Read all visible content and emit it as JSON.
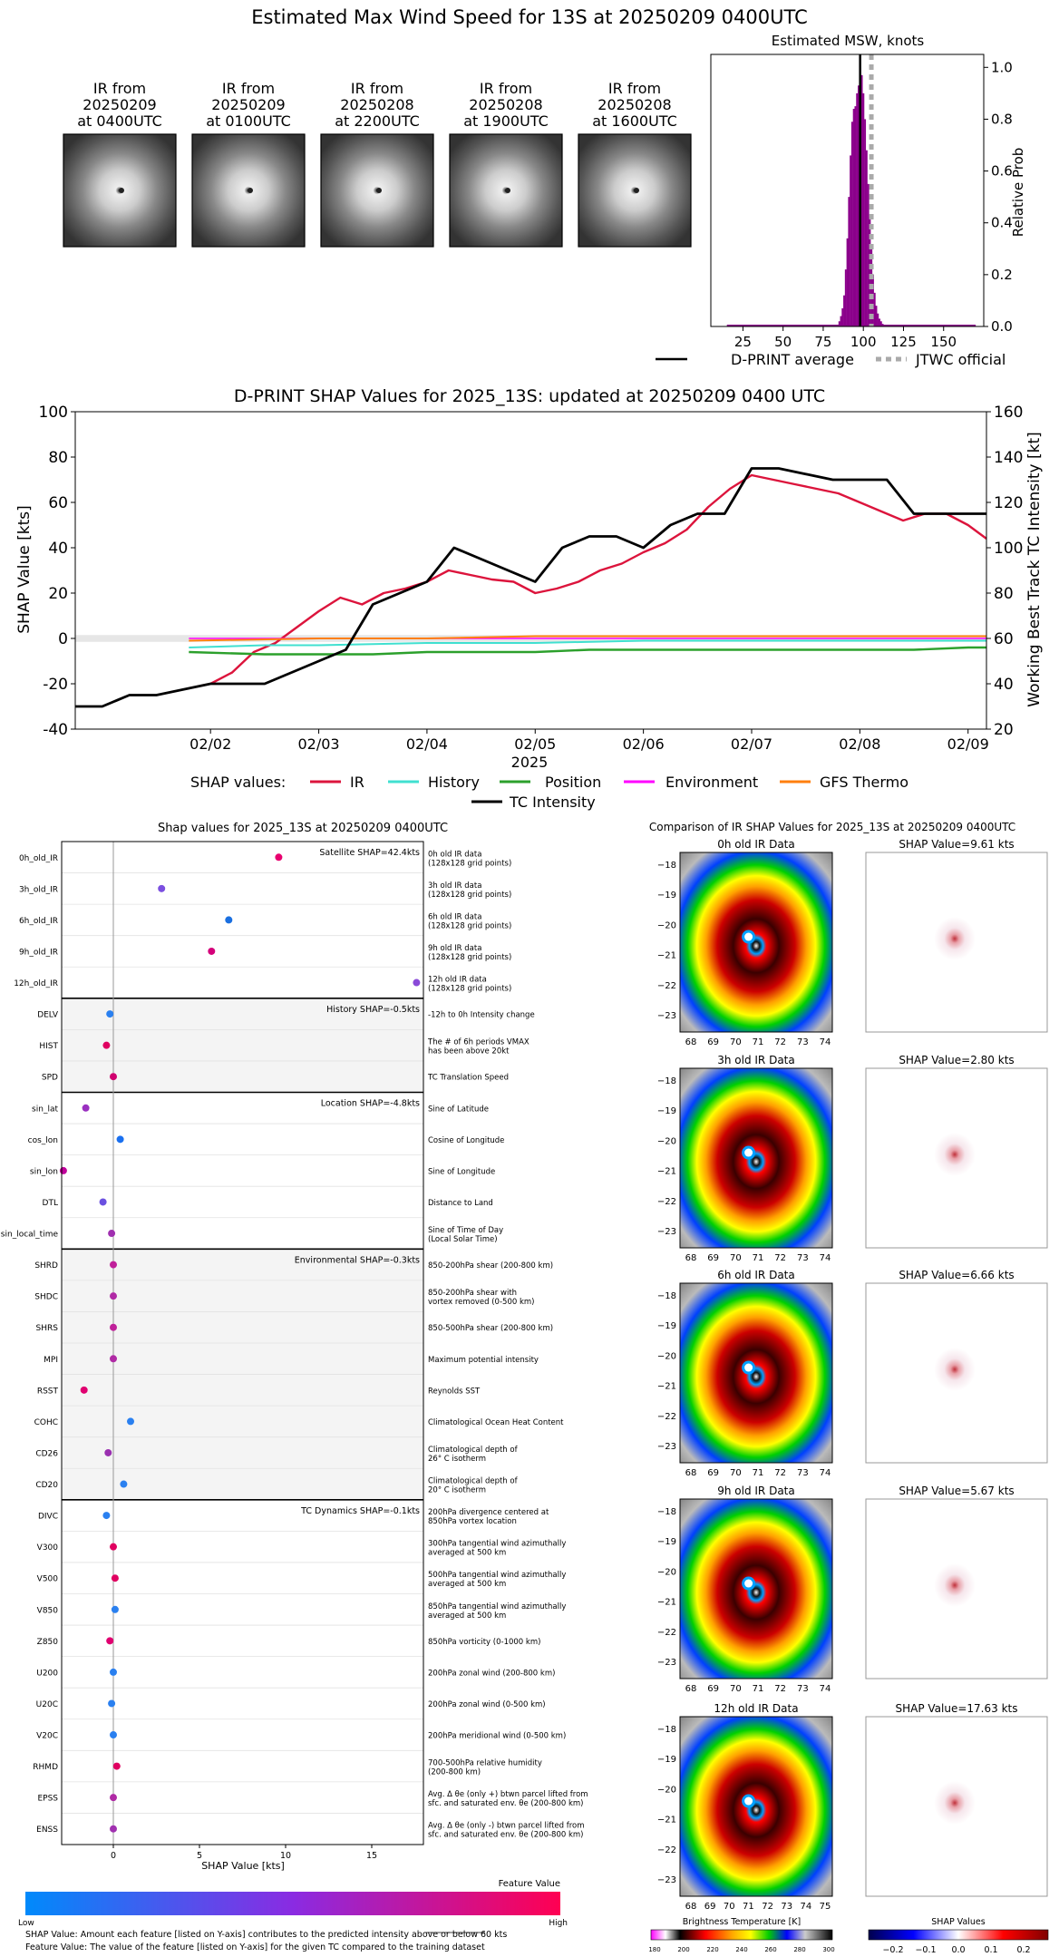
{
  "page": {
    "title": "Estimated Max Wind Speed for 13S at 20250209 0400UTC"
  },
  "ir_thumbnails": [
    {
      "line1": "IR from",
      "line2": "20250209",
      "line3": "at 0400UTC"
    },
    {
      "line1": "IR from",
      "line2": "20250209",
      "line3": "at 0100UTC"
    },
    {
      "line1": "IR from",
      "line2": "20250208",
      "line3": "at 2200UTC"
    },
    {
      "line1": "IR from",
      "line2": "20250208",
      "line3": "at 1900UTC"
    },
    {
      "line1": "IR from",
      "line2": "20250208",
      "line3": "at 1600UTC"
    }
  ],
  "colors": {
    "msw_bars": "#8b008b",
    "jtwc": "#aaaaaa",
    "ir": "#dc143c",
    "history": "#40e0d0",
    "position": "#2ca02c",
    "environment": "#ff00ff",
    "gfs_thermo": "#ff7f0e",
    "tc_intensity": "#000000"
  },
  "chart_data": [
    {
      "type": "bar",
      "title": "Estimated MSW, knots",
      "ylabel": "Relative Prob",
      "xlim": [
        5,
        175
      ],
      "ylim": [
        0,
        1.05
      ],
      "xticks": [
        25,
        50,
        75,
        100,
        125,
        150
      ],
      "yticks": [
        0.0,
        0.2,
        0.4,
        0.6,
        0.8,
        1.0
      ],
      "x": [
        85,
        86,
        87,
        88,
        89,
        90,
        91,
        92,
        93,
        94,
        95,
        96,
        97,
        98,
        99,
        100,
        101,
        102,
        103,
        104,
        105,
        106,
        107,
        108,
        109,
        110,
        111,
        112
      ],
      "values": [
        0.02,
        0.04,
        0.07,
        0.12,
        0.22,
        0.34,
        0.5,
        0.66,
        0.79,
        0.84,
        0.85,
        0.9,
        0.93,
        1.0,
        0.97,
        0.9,
        0.8,
        0.68,
        0.55,
        0.42,
        0.3,
        0.2,
        0.13,
        0.08,
        0.05,
        0.03,
        0.02,
        0.01
      ],
      "dprint_average": 98,
      "jtwc_official": 105,
      "legend": [
        "D-PRINT average",
        "JTWC official"
      ]
    },
    {
      "type": "line",
      "title": "D-PRINT SHAP Values for 2025_13S: updated at 20250209 0400 UTC",
      "xlabel": "2025",
      "ylabel": "SHAP Value [kts]",
      "ylabel_right": "Working Best Track TC Intensity [kt]",
      "xticks": [
        "02/02",
        "02/03",
        "02/04",
        "02/05",
        "02/06",
        "02/07",
        "02/08",
        "02/09"
      ],
      "ylim": [
        -40,
        100
      ],
      "ylim_right": [
        20,
        160
      ],
      "yticks": [
        -40,
        -20,
        0,
        20,
        40,
        60,
        80,
        100
      ],
      "yticks_right": [
        20,
        40,
        60,
        80,
        100,
        120,
        140,
        160
      ],
      "legend_prefix": "SHAP values:",
      "series": [
        {
          "name": "IR",
          "axis": "left",
          "x": [
            1.8,
            2.0,
            2.2,
            2.4,
            2.6,
            2.8,
            3.0,
            3.2,
            3.4,
            3.6,
            3.8,
            4.0,
            4.2,
            4.4,
            4.6,
            4.8,
            5.0,
            5.2,
            5.4,
            5.6,
            5.8,
            6.0,
            6.2,
            6.4,
            6.6,
            6.8,
            7.0,
            7.2,
            7.4,
            7.6,
            7.8,
            8.0,
            8.2,
            8.4,
            8.6,
            8.8,
            9.0,
            9.17
          ],
          "y": [
            -22,
            -20,
            -15,
            -6,
            -2,
            5,
            12,
            18,
            15,
            20,
            22,
            25,
            30,
            28,
            26,
            25,
            20,
            22,
            25,
            30,
            33,
            38,
            42,
            48,
            58,
            66,
            72,
            70,
            68,
            66,
            64,
            60,
            56,
            52,
            55,
            55,
            50,
            44
          ]
        },
        {
          "name": "History",
          "axis": "left",
          "x": [
            1.8,
            2.5,
            3.0,
            4.0,
            5.0,
            6.0,
            7.0,
            8.0,
            9.17
          ],
          "y": [
            -4,
            -3,
            -3,
            -2,
            -2,
            -1,
            -1,
            -1,
            -1
          ]
        },
        {
          "name": "Position",
          "axis": "left",
          "x": [
            1.8,
            2.5,
            3.0,
            3.5,
            4.0,
            4.5,
            5.0,
            5.5,
            6.0,
            6.5,
            7.0,
            7.5,
            8.0,
            8.5,
            9.0,
            9.17
          ],
          "y": [
            -6,
            -7,
            -7,
            -7,
            -6,
            -6,
            -6,
            -5,
            -5,
            -5,
            -5,
            -5,
            -5,
            -5,
            -4,
            -4
          ]
        },
        {
          "name": "Environment",
          "axis": "left",
          "x": [
            1.8,
            3.0,
            4.0,
            5.0,
            6.0,
            7.0,
            8.0,
            9.17
          ],
          "y": [
            0,
            0,
            0,
            0,
            0,
            0,
            0,
            0
          ]
        },
        {
          "name": "GFS Thermo",
          "axis": "left",
          "x": [
            1.8,
            3.0,
            4.0,
            5.0,
            6.0,
            7.0,
            8.0,
            9.17
          ],
          "y": [
            -1,
            0,
            0,
            1,
            1,
            1,
            1,
            1
          ]
        },
        {
          "name": "TC Intensity",
          "axis": "right",
          "x": [
            0.75,
            1.0,
            1.25,
            1.5,
            2.0,
            2.5,
            3.0,
            3.25,
            3.5,
            4.0,
            4.25,
            4.75,
            5.0,
            5.25,
            5.5,
            5.75,
            6.0,
            6.25,
            6.5,
            6.75,
            7.0,
            7.25,
            7.75,
            8.25,
            8.5,
            9.17
          ],
          "y": [
            30,
            30,
            35,
            35,
            40,
            40,
            50,
            55,
            75,
            85,
            100,
            90,
            85,
            100,
            105,
            105,
            100,
            110,
            115,
            115,
            135,
            135,
            130,
            130,
            115,
            115
          ]
        }
      ]
    }
  ],
  "shap_panel": {
    "title": "Shap values for 2025_13S at 20250209 0400UTC",
    "xlabel": "SHAP Value [kts]",
    "xticks": [
      "0",
      "5",
      "10",
      "15"
    ],
    "xlim": [
      -3,
      18
    ],
    "groups": [
      {
        "label": "Satellite SHAP=42.4kts",
        "rows": [
          {
            "feature": "0h_old_IR",
            "desc1": "0h old IR data",
            "desc2": "(128x128 grid points)",
            "shap": 9.6,
            "color": "#e8006f"
          },
          {
            "feature": "3h_old_IR",
            "desc1": "3h old IR data",
            "desc2": "(128x128 grid points)",
            "shap": 2.8,
            "color": "#7b4fe0"
          },
          {
            "feature": "6h_old_IR",
            "desc1": "6h old IR data",
            "desc2": "(128x128 grid points)",
            "shap": 6.7,
            "color": "#1a6fe0"
          },
          {
            "feature": "9h_old_IR",
            "desc1": "9h old IR data",
            "desc2": "(128x128 grid points)",
            "shap": 5.7,
            "color": "#d4007a"
          },
          {
            "feature": "12h_old_IR",
            "desc1": "12h old IR data",
            "desc2": "(128x128 grid points)",
            "shap": 17.6,
            "color": "#8a4ad8"
          }
        ]
      },
      {
        "label": "History SHAP=-0.5kts",
        "rows": [
          {
            "feature": "DELV",
            "desc1": "-12h to 0h Intensity change",
            "desc2": "",
            "shap": -0.2,
            "color": "#2a80f0"
          },
          {
            "feature": "HIST",
            "desc1": "The # of 6h periods VMAX",
            "desc2": "has been above 20kt",
            "shap": -0.4,
            "color": "#e00060"
          },
          {
            "feature": "SPD",
            "desc1": "TC Translation Speed",
            "desc2": "",
            "shap": 0.0,
            "color": "#d0006f"
          }
        ]
      },
      {
        "label": "Location SHAP=-4.8kts",
        "rows": [
          {
            "feature": "sin_lat",
            "desc1": "Sine of Latitude",
            "desc2": "",
            "shap": -1.6,
            "color": "#9a30c0"
          },
          {
            "feature": "cos_lon",
            "desc1": "Cosine of Longitude",
            "desc2": "",
            "shap": 0.4,
            "color": "#1a70f0"
          },
          {
            "feature": "sin_lon",
            "desc1": "Sine of Longitude",
            "desc2": "",
            "shap": -2.9,
            "color": "#c0009a"
          },
          {
            "feature": "DTL",
            "desc1": "Distance to Land",
            "desc2": "",
            "shap": -0.6,
            "color": "#6a50e0"
          },
          {
            "feature": "sin_local_time",
            "desc1": "Sine of Time of Day",
            "desc2": "(Local Solar Time)",
            "shap": -0.1,
            "color": "#a030b0"
          }
        ]
      },
      {
        "label": "Environmental SHAP=-0.3kts",
        "rows": [
          {
            "feature": "SHRD",
            "desc1": "850-200hPa shear (200-800 km)",
            "desc2": "",
            "shap": 0.0,
            "color": "#c0209a"
          },
          {
            "feature": "SHDC",
            "desc1": "850-200hPa shear with",
            "desc2": "vortex removed (0-500 km)",
            "shap": 0.0,
            "color": "#b02aa5"
          },
          {
            "feature": "SHRS",
            "desc1": "850-500hPa shear (200-800 km)",
            "desc2": "",
            "shap": 0.0,
            "color": "#c0209a"
          },
          {
            "feature": "MPI",
            "desc1": "Maximum potential intensity",
            "desc2": "",
            "shap": 0.0,
            "color": "#b02aa5"
          },
          {
            "feature": "RSST",
            "desc1": "Reynolds SST",
            "desc2": "",
            "shap": -1.7,
            "color": "#e00070"
          },
          {
            "feature": "COHC",
            "desc1": "Climatological Ocean Heat Content",
            "desc2": "",
            "shap": 1.0,
            "color": "#2a80f0"
          },
          {
            "feature": "CD26",
            "desc1": "Climatological depth of",
            "desc2": "26° C isotherm",
            "shap": -0.3,
            "color": "#9a30b0"
          },
          {
            "feature": "CD20",
            "desc1": "Climatological depth of",
            "desc2": "20° C isotherm",
            "shap": 0.6,
            "color": "#2a80f0"
          }
        ]
      },
      {
        "label": "TC Dynamics SHAP=-0.1kts",
        "rows": [
          {
            "feature": "DIVC",
            "desc1": "200hPa divergence centered at",
            "desc2": "850hPa vortex location",
            "shap": -0.4,
            "color": "#2a80f0"
          },
          {
            "feature": "V300",
            "desc1": "300hPa tangential wind azimuthally",
            "desc2": "averaged at 500 km",
            "shap": 0.0,
            "color": "#e00060"
          },
          {
            "feature": "V500",
            "desc1": "500hPa tangential wind azimuthally",
            "desc2": "averaged at 500 km",
            "shap": 0.1,
            "color": "#e00060"
          },
          {
            "feature": "V850",
            "desc1": "850hPa tangential wind azimuthally",
            "desc2": "averaged at 500 km",
            "shap": 0.1,
            "color": "#2a80f0"
          },
          {
            "feature": "Z850",
            "desc1": "850hPa vorticity (0-1000 km)",
            "desc2": "",
            "shap": -0.2,
            "color": "#e00070"
          },
          {
            "feature": "U200",
            "desc1": "200hPa zonal wind (200-800 km)",
            "desc2": "",
            "shap": 0.0,
            "color": "#2a80f0"
          },
          {
            "feature": "U20C",
            "desc1": "200hPa zonal wind (0-500 km)",
            "desc2": "",
            "shap": -0.1,
            "color": "#2a80f0"
          },
          {
            "feature": "V20C",
            "desc1": "200hPa meridional wind (0-500 km)",
            "desc2": "",
            "shap": 0.0,
            "color": "#2a80f0"
          },
          {
            "feature": "RHMD",
            "desc1": "700-500hPa relative humidity",
            "desc2": "(200-800 km)",
            "shap": 0.2,
            "color": "#e00060"
          },
          {
            "feature": "EPSS",
            "desc1": "Avg. Δ θe (only +) btwn parcel lifted from",
            "desc2": "sfc. and saturated env. θe (200-800 km)",
            "shap": 0.0,
            "color": "#b02aa5"
          },
          {
            "feature": "ENSS",
            "desc1": "Avg. Δ θe (only -) btwn parcel lifted from",
            "desc2": "sfc. and saturated env. θe (200-800 km)",
            "shap": 0.0,
            "color": "#a030b0"
          }
        ]
      }
    ],
    "colorbar": {
      "title": "Feature Value",
      "low": "Low",
      "high": "High"
    },
    "footnote1": "SHAP Value: Amount each feature [listed on Y-axis] contributes to the predicted intensity above or below 60 kts",
    "footnote2": "Feature Value: The value of the feature [listed on Y-axis] for the given TC compared to the training dataset"
  },
  "ir_comparison": {
    "title": "Comparison of IR SHAP Values for 2025_13S at 20250209 0400UTC",
    "panels": [
      {
        "ir_title": "0h old IR Data",
        "shap_title": "SHAP Value=9.61 kts",
        "xticks": [
          "68",
          "69",
          "70",
          "71",
          "72",
          "73",
          "74"
        ]
      },
      {
        "ir_title": "3h old IR Data",
        "shap_title": "SHAP Value=2.80 kts",
        "xticks": [
          "68",
          "69",
          "70",
          "71",
          "72",
          "73",
          "74"
        ]
      },
      {
        "ir_title": "6h old IR Data",
        "shap_title": "SHAP Value=6.66 kts",
        "xticks": [
          "68",
          "69",
          "70",
          "71",
          "72",
          "73",
          "74"
        ]
      },
      {
        "ir_title": "9h old IR Data",
        "shap_title": "SHAP Value=5.67 kts",
        "xticks": [
          "68",
          "69",
          "70",
          "71",
          "72",
          "73",
          "74"
        ]
      },
      {
        "ir_title": "12h old IR Data",
        "shap_title": "SHAP Value=17.63 kts",
        "xticks": [
          "68",
          "69",
          "70",
          "71",
          "72",
          "73",
          "74",
          "75"
        ]
      }
    ],
    "yticks": [
      "−18",
      "−19",
      "−20",
      "−21",
      "−22",
      "−23"
    ],
    "bt_colorbar": {
      "title": "Brightness Temperature [K]",
      "ticks": [
        "180",
        "200",
        "220",
        "240",
        "260",
        "280",
        "300"
      ]
    },
    "shap_colorbar": {
      "title": "SHAP Values",
      "ticks": [
        "−0.2",
        "−0.1",
        "0.0",
        "0.1",
        "0.2"
      ]
    }
  }
}
